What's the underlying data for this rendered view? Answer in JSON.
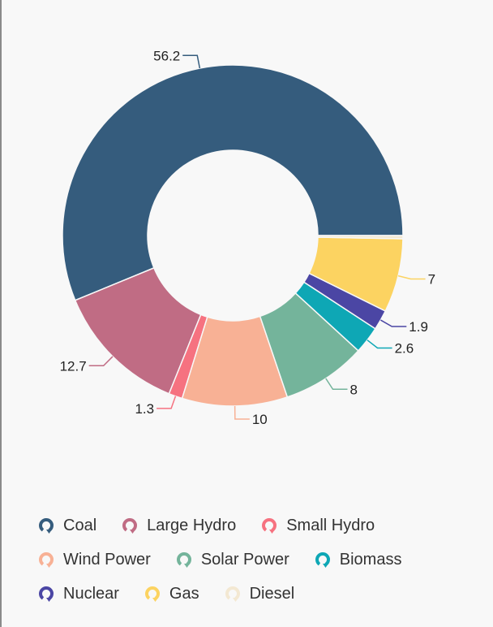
{
  "chart_data": {
    "type": "pie",
    "donut": true,
    "categories": [
      "Coal",
      "Large Hydro",
      "Small Hydro",
      "Wind Power",
      "Solar Power",
      "Biomass",
      "Nuclear",
      "Gas",
      "Diesel"
    ],
    "values": [
      56.2,
      12.7,
      1.3,
      10,
      8,
      2.6,
      1.9,
      7,
      0.3
    ],
    "value_labels": [
      "56.2",
      "12.7",
      "1.3",
      "10",
      "8",
      "2.6",
      "1.9",
      "7",
      ""
    ],
    "colors": [
      "#355C7D",
      "#C06C84",
      "#F67280",
      "#F8B195",
      "#74B49B",
      "#0EA7B5",
      "#4B46A4",
      "#FCD361",
      "#F3E8D2"
    ],
    "legend_position": "bottom",
    "start_angle": "3 o'clock, counter-clockwise"
  }
}
